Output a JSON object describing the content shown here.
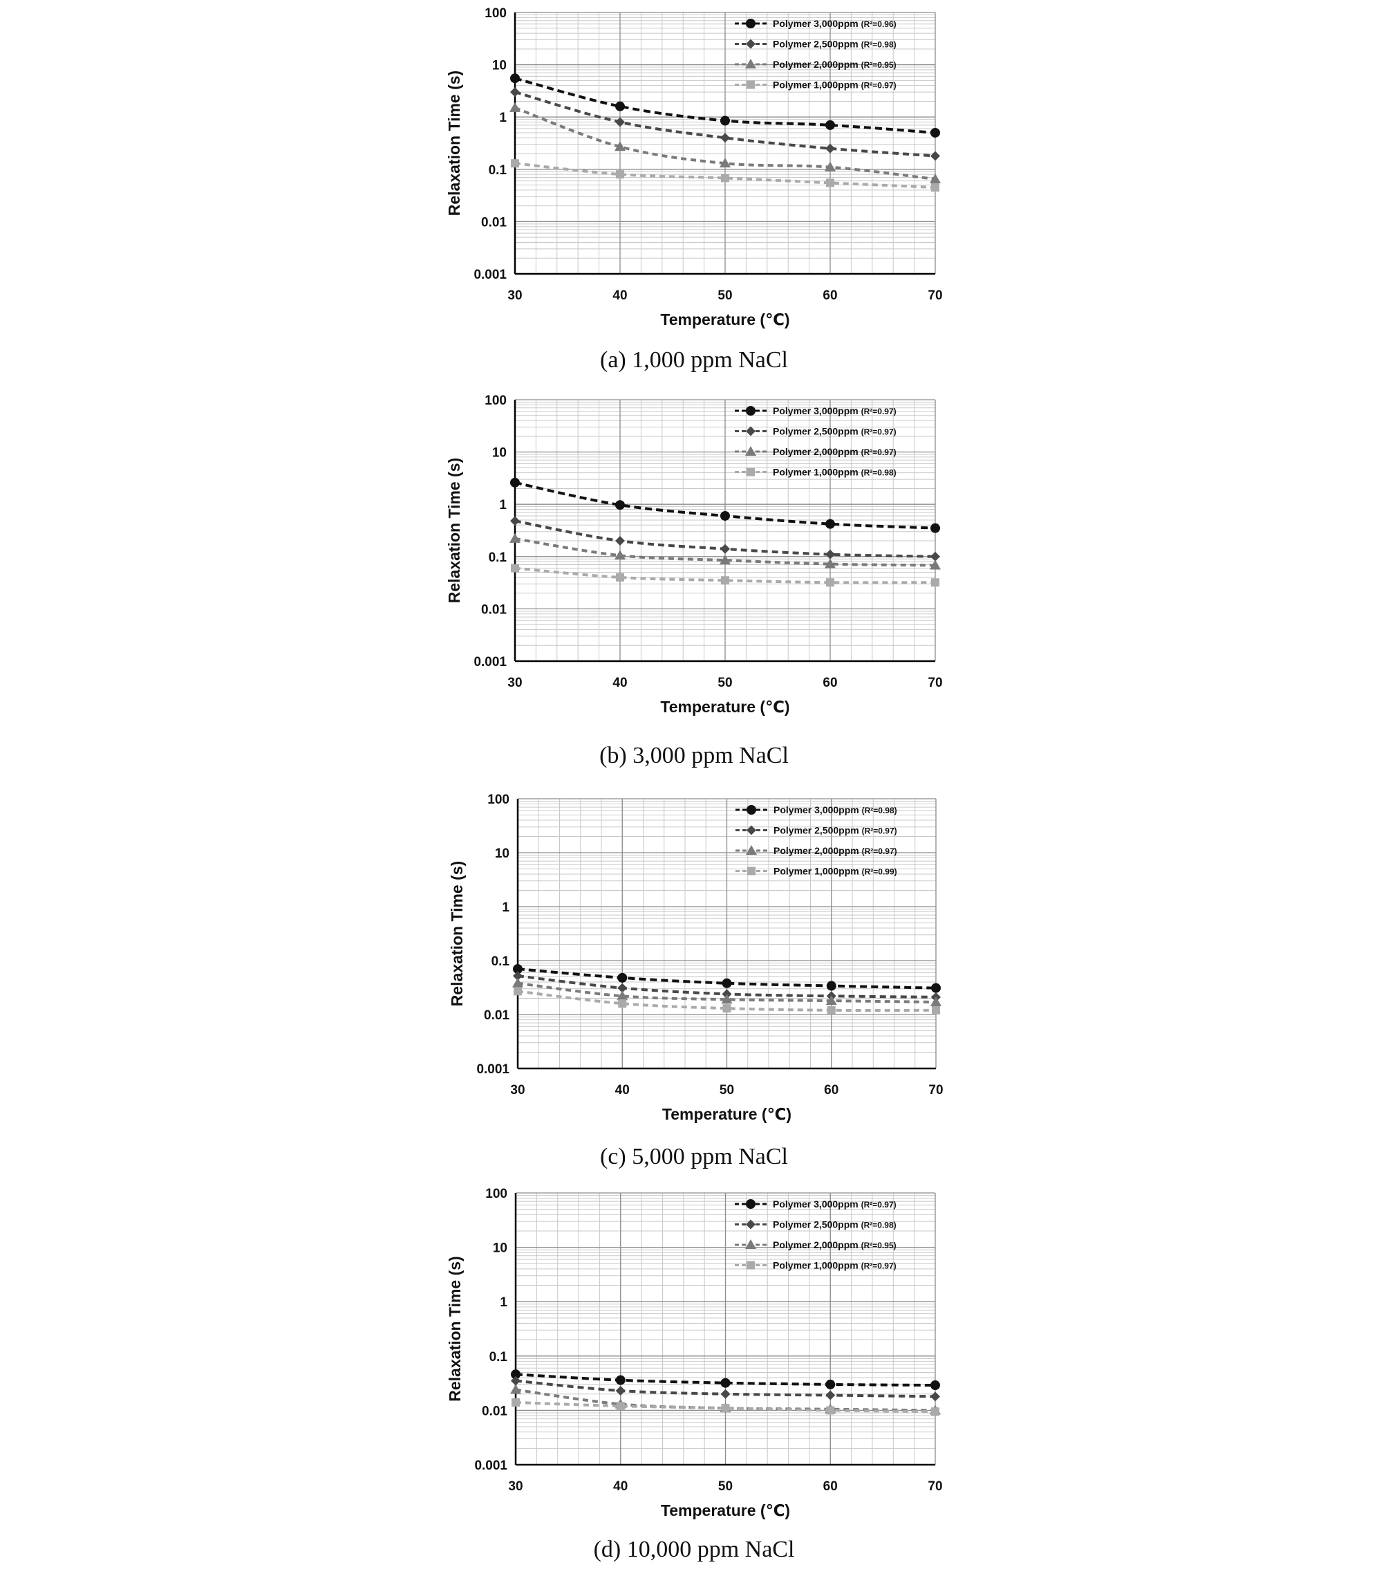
{
  "chart_data": [
    {
      "type": "line",
      "caption": "(a) 1,000 ppm NaCl",
      "xlabel": "Temperature (℃)",
      "ylabel": "Relaxation Time (s)",
      "xlim": [
        30,
        70
      ],
      "ylim": [
        0.001,
        100
      ],
      "yscale": "log",
      "x_ticks": [
        "30",
        "40",
        "50",
        "60",
        "70"
      ],
      "y_ticks": [
        "0.001",
        "0.01",
        "0.1",
        "1",
        "10",
        "100"
      ],
      "grid": true,
      "legend_position": "top-right",
      "x": [
        30,
        40,
        50,
        60,
        70
      ],
      "series": [
        {
          "name": "Polymer 3,000ppm",
          "r2": "(R²=0.96)",
          "marker": "circle",
          "color": "#111111",
          "values": [
            5.5,
            1.6,
            0.85,
            0.7,
            0.5
          ]
        },
        {
          "name": "Polymer 2,500ppm",
          "r2": "(R²=0.98)",
          "marker": "diamond",
          "color": "#484848",
          "values": [
            3.0,
            0.8,
            0.4,
            0.25,
            0.18
          ]
        },
        {
          "name": "Polymer 2,000ppm",
          "r2": "(R²=0.95)",
          "marker": "triangle",
          "color": "#7a7a7a",
          "values": [
            1.5,
            0.27,
            0.13,
            0.11,
            0.065
          ]
        },
        {
          "name": "Polymer 1,000ppm",
          "r2": "(R²=0.97)",
          "marker": "square",
          "color": "#aaaaaa",
          "values": [
            0.13,
            0.08,
            0.068,
            0.055,
            0.045
          ]
        }
      ]
    },
    {
      "type": "line",
      "caption": "(b) 3,000 ppm NaCl",
      "xlabel": "Temperature (℃)",
      "ylabel": "Relaxation Time (s)",
      "xlim": [
        30,
        70
      ],
      "ylim": [
        0.001,
        100
      ],
      "yscale": "log",
      "x_ticks": [
        "30",
        "40",
        "50",
        "60",
        "70"
      ],
      "y_ticks": [
        "0.001",
        "0.01",
        "0.1",
        "1",
        "10",
        "100"
      ],
      "grid": true,
      "legend_position": "top-right",
      "x": [
        30,
        40,
        50,
        60,
        70
      ],
      "series": [
        {
          "name": "Polymer 3,000ppm",
          "r2": "(R²=0.97)",
          "marker": "circle",
          "color": "#111111",
          "values": [
            2.6,
            0.97,
            0.6,
            0.42,
            0.35
          ]
        },
        {
          "name": "Polymer 2,500ppm",
          "r2": "(R²=0.97)",
          "marker": "diamond",
          "color": "#484848",
          "values": [
            0.48,
            0.2,
            0.14,
            0.11,
            0.1
          ]
        },
        {
          "name": "Polymer 2,000ppm",
          "r2": "(R²=0.97)",
          "marker": "triangle",
          "color": "#7a7a7a",
          "values": [
            0.22,
            0.105,
            0.085,
            0.072,
            0.068
          ]
        },
        {
          "name": "Polymer 1,000ppm",
          "r2": "(R²=0.98)",
          "marker": "square",
          "color": "#aaaaaa",
          "values": [
            0.06,
            0.04,
            0.035,
            0.032,
            0.032
          ]
        }
      ]
    },
    {
      "type": "line",
      "caption": "(c) 5,000 ppm NaCl",
      "xlabel": "Temperature (℃)",
      "ylabel": "Relaxation Time (s)",
      "xlim": [
        30,
        70
      ],
      "ylim": [
        0.001,
        100
      ],
      "yscale": "log",
      "x_ticks": [
        "30",
        "40",
        "50",
        "60",
        "70"
      ],
      "y_ticks": [
        "0.001",
        "0.01",
        "0.1",
        "1",
        "10",
        "100"
      ],
      "grid": true,
      "legend_position": "top-right",
      "x": [
        30,
        40,
        50,
        60,
        70
      ],
      "series": [
        {
          "name": "Polymer 3,000ppm",
          "r2": "(R²=0.98)",
          "marker": "circle",
          "color": "#111111",
          "values": [
            0.07,
            0.048,
            0.038,
            0.034,
            0.031
          ]
        },
        {
          "name": "Polymer 2,500ppm",
          "r2": "(R²=0.97)",
          "marker": "diamond",
          "color": "#484848",
          "values": [
            0.052,
            0.031,
            0.024,
            0.022,
            0.021
          ]
        },
        {
          "name": "Polymer 2,000ppm",
          "r2": "(R²=0.97)",
          "marker": "triangle",
          "color": "#7a7a7a",
          "values": [
            0.038,
            0.022,
            0.019,
            0.018,
            0.017
          ]
        },
        {
          "name": "Polymer 1,000ppm",
          "r2": "(R²=0.99)",
          "marker": "square",
          "color": "#aaaaaa",
          "values": [
            0.027,
            0.016,
            0.013,
            0.012,
            0.012
          ]
        }
      ]
    },
    {
      "type": "line",
      "caption": "(d) 10,000 ppm NaCl",
      "xlabel": "Temperature (℃)",
      "ylabel": "Relaxation Time (s)",
      "xlim": [
        30,
        70
      ],
      "ylim": [
        0.001,
        100
      ],
      "yscale": "log",
      "x_ticks": [
        "30",
        "40",
        "50",
        "60",
        "70"
      ],
      "y_ticks": [
        "0.001",
        "0.01",
        "0.1",
        "1",
        "10",
        "100"
      ],
      "grid": true,
      "legend_position": "top-right",
      "x": [
        30,
        40,
        50,
        60,
        70
      ],
      "series": [
        {
          "name": "Polymer 3,000ppm",
          "r2": "(R²=0.97)",
          "marker": "circle",
          "color": "#111111",
          "values": [
            0.046,
            0.036,
            0.032,
            0.03,
            0.029
          ]
        },
        {
          "name": "Polymer 2,500ppm",
          "r2": "(R²=0.98)",
          "marker": "diamond",
          "color": "#484848",
          "values": [
            0.035,
            0.023,
            0.02,
            0.019,
            0.018
          ]
        },
        {
          "name": "Polymer 2,000ppm",
          "r2": "(R²=0.95)",
          "marker": "triangle",
          "color": "#7a7a7a",
          "values": [
            0.024,
            0.013,
            0.011,
            0.0105,
            0.01
          ]
        },
        {
          "name": "Polymer 1,000ppm",
          "r2": "(R²=0.97)",
          "marker": "square",
          "color": "#aaaaaa",
          "values": [
            0.014,
            0.012,
            0.011,
            0.01,
            0.0095
          ]
        }
      ]
    }
  ]
}
